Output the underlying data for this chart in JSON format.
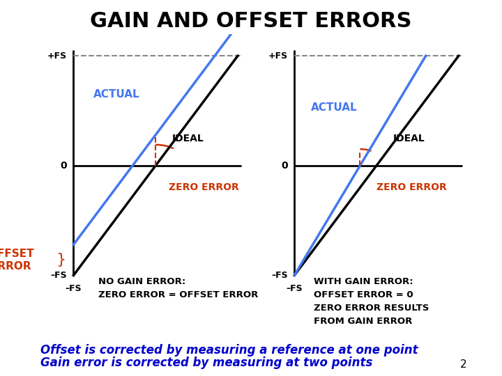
{
  "title": "GAIN AND OFFSET ERRORS",
  "title_fontsize": 22,
  "title_fontweight": "bold",
  "background_color": "#ffffff",
  "subtitle_line1": "Offset is corrected by measuring a reference at one point",
  "subtitle_line2": "Gain error is corrected by measuring at two points",
  "subtitle_color": "#0000cc",
  "subtitle_fontsize": 12,
  "page_number": "2",
  "left_plot": {
    "label_pFS": "+FS",
    "label_nFS": "–FS",
    "label_zero": "0",
    "actual_color": "#4477ee",
    "actual_label": "ACTUAL",
    "ideal_label": "IDEAL",
    "zero_error_label": "ZERO ERROR",
    "zero_error_color": "#cc3300",
    "offset_error_label": "OFFSET\nERROR",
    "offset_error_color": "#cc3300",
    "bottom_label_line1": "NO GAIN ERROR:",
    "bottom_label_line2": "ZERO ERROR = OFFSET ERROR",
    "bottom_label_color": "#000000"
  },
  "right_plot": {
    "label_pFS": "+FS",
    "label_nFS": "–FS",
    "label_zero": "0",
    "actual_color": "#4477ee",
    "actual_label": "ACTUAL",
    "ideal_label": "IDEAL",
    "zero_error_label": "ZERO ERROR",
    "zero_error_color": "#cc3300",
    "bottom_label_line1": "WITH GAIN ERROR:",
    "bottom_label_line2": "OFFSET ERROR = 0",
    "bottom_label_line3": "ZERO ERROR RESULTS",
    "bottom_label_line4": "FROM GAIN ERROR",
    "bottom_label_color": "#000000"
  }
}
